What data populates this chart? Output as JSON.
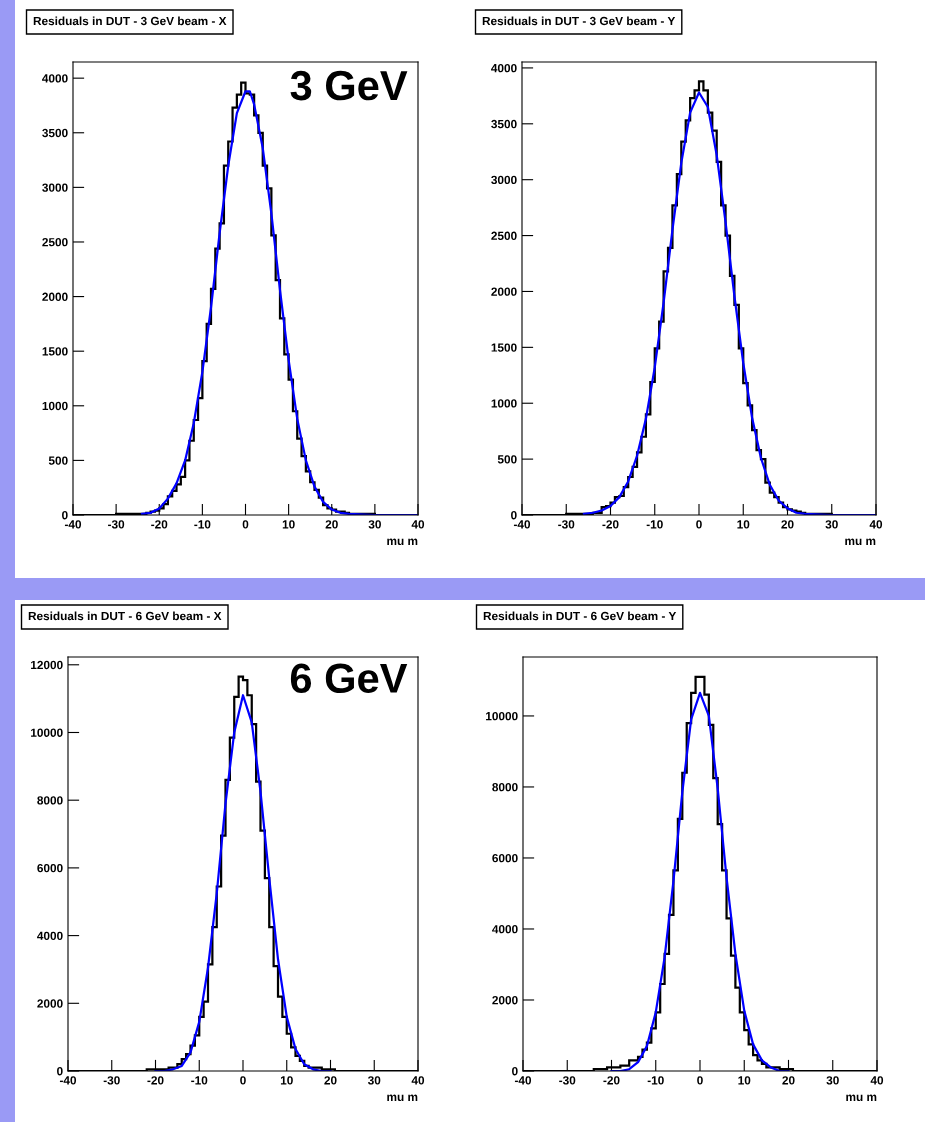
{
  "chart_data": [
    {
      "type": "histogram",
      "title": "Residuals in DUT - 3 GeV beam - X",
      "xlabel": "mu m",
      "annotations": [
        "3 GeV"
      ],
      "xlim": [
        -40,
        40
      ],
      "xticks": [
        -40,
        -30,
        -20,
        -10,
        0,
        10,
        20,
        30,
        40
      ],
      "ylim": [
        0,
        4148
      ],
      "yticks": [
        0,
        500,
        1000,
        1500,
        2000,
        2500,
        3000,
        3500,
        4000
      ],
      "series": [
        {
          "type": "histogram",
          "color": "#000000",
          "bins": [
            -40,
            -39,
            -38,
            -37,
            -36,
            -35,
            -34,
            -33,
            -32,
            -31,
            -30,
            -29,
            -28,
            -27,
            -26,
            -25,
            -24,
            -23,
            -22,
            -21,
            -20,
            -19,
            -18,
            -17,
            -16,
            -15,
            -14,
            -13,
            -12,
            -11,
            -10,
            -9,
            -8,
            -7,
            -6,
            -5,
            -4,
            -3,
            -2,
            -1,
            0,
            1,
            2,
            3,
            4,
            5,
            6,
            7,
            8,
            9,
            10,
            11,
            12,
            13,
            14,
            15,
            16,
            17,
            18,
            19,
            20,
            21,
            22,
            23,
            24,
            25,
            26,
            27,
            28,
            29,
            30,
            31,
            32,
            33,
            34,
            35,
            36,
            37,
            38,
            39,
            40
          ],
          "values": [
            0,
            0,
            0,
            0,
            0,
            0,
            0,
            0,
            0,
            0,
            10,
            10,
            10,
            10,
            10,
            10,
            10,
            20,
            30,
            40,
            60,
            100,
            170,
            220,
            280,
            350,
            500,
            680,
            870,
            1070,
            1410,
            1750,
            2070,
            2440,
            2670,
            3200,
            3420,
            3730,
            3850,
            3960,
            3860,
            3850,
            3660,
            3500,
            3200,
            2990,
            2560,
            2150,
            1800,
            1470,
            1240,
            950,
            700,
            540,
            400,
            300,
            230,
            160,
            90,
            60,
            50,
            30,
            30,
            20,
            10,
            10,
            10,
            10,
            10,
            10,
            0,
            0,
            0,
            0,
            0,
            0,
            0,
            0,
            0,
            0
          ]
        },
        {
          "type": "line",
          "color": "#0000ff",
          "x": [
            -24,
            -22,
            -20,
            -18,
            -16,
            -14,
            -12,
            -10,
            -8,
            -6,
            -4,
            -2,
            0,
            1,
            2,
            4,
            6,
            8,
            10,
            12,
            14,
            16,
            18,
            20,
            22,
            24,
            30,
            40
          ],
          "values": [
            10,
            20,
            60,
            150,
            290,
            500,
            840,
            1310,
            1900,
            2580,
            3200,
            3680,
            3880,
            3880,
            3760,
            3360,
            2760,
            2060,
            1420,
            880,
            500,
            260,
            120,
            50,
            20,
            10,
            0,
            0
          ]
        }
      ]
    },
    {
      "type": "histogram",
      "title": "Residuals in DUT - 3 GeV beam - Y",
      "xlabel": "mu m",
      "xlim": [
        -40,
        40
      ],
      "xticks": [
        -40,
        -30,
        -20,
        -10,
        0,
        10,
        20,
        30,
        40
      ],
      "ylim": [
        0,
        4053
      ],
      "yticks": [
        0,
        500,
        1000,
        1500,
        2000,
        2500,
        3000,
        3500,
        4000
      ],
      "series": [
        {
          "type": "histogram",
          "color": "#000000",
          "bins": [
            -40,
            -39,
            -38,
            -37,
            -36,
            -35,
            -34,
            -33,
            -32,
            -31,
            -30,
            -29,
            -28,
            -27,
            -26,
            -25,
            -24,
            -23,
            -22,
            -21,
            -20,
            -19,
            -18,
            -17,
            -16,
            -15,
            -14,
            -13,
            -12,
            -11,
            -10,
            -9,
            -8,
            -7,
            -6,
            -5,
            -4,
            -3,
            -2,
            -1,
            0,
            1,
            2,
            3,
            4,
            5,
            6,
            7,
            8,
            9,
            10,
            11,
            12,
            13,
            14,
            15,
            16,
            17,
            18,
            19,
            20,
            21,
            22,
            23,
            24,
            25,
            26,
            27,
            28,
            29,
            30,
            31,
            32,
            33,
            34,
            35,
            36,
            37,
            38,
            39,
            40
          ],
          "values": [
            0,
            0,
            0,
            0,
            0,
            0,
            0,
            0,
            0,
            0,
            10,
            10,
            10,
            10,
            10,
            10,
            20,
            20,
            70,
            80,
            110,
            160,
            170,
            250,
            340,
            430,
            560,
            700,
            900,
            1190,
            1490,
            1730,
            2180,
            2390,
            2770,
            3050,
            3340,
            3530,
            3730,
            3800,
            3880,
            3800,
            3600,
            3440,
            3160,
            2770,
            2500,
            2140,
            1880,
            1490,
            1180,
            980,
            760,
            580,
            500,
            290,
            200,
            160,
            110,
            70,
            50,
            40,
            30,
            20,
            10,
            10,
            10,
            10,
            10,
            10,
            0,
            0,
            0,
            0,
            0,
            0,
            0,
            0,
            0,
            0
          ]
        },
        {
          "type": "line",
          "color": "#0000ff",
          "x": [
            -26,
            -24,
            -22,
            -20,
            -18,
            -16,
            -14,
            -12,
            -10,
            -8,
            -6,
            -4,
            -2,
            0,
            2,
            4,
            6,
            8,
            10,
            12,
            14,
            16,
            18,
            20,
            22,
            24,
            30,
            40
          ],
          "values": [
            10,
            20,
            40,
            80,
            160,
            300,
            530,
            860,
            1320,
            1900,
            2550,
            3150,
            3600,
            3780,
            3650,
            3220,
            2620,
            1960,
            1360,
            870,
            510,
            270,
            130,
            60,
            20,
            10,
            0,
            0
          ]
        }
      ]
    },
    {
      "type": "histogram",
      "title": "Residuals in DUT - 6 GeV beam - X",
      "xlabel": "mu m",
      "annotations": [
        "6 GeV"
      ],
      "xlim": [
        -40,
        40
      ],
      "xticks": [
        -40,
        -30,
        -20,
        -10,
        0,
        10,
        20,
        30,
        40
      ],
      "ylim": [
        0,
        12230
      ],
      "yticks": [
        0,
        2000,
        4000,
        6000,
        8000,
        10000,
        12000
      ],
      "series": [
        {
          "type": "histogram",
          "color": "#000000",
          "bins": [
            -40,
            -39,
            -38,
            -37,
            -36,
            -35,
            -34,
            -33,
            -32,
            -31,
            -30,
            -29,
            -28,
            -27,
            -26,
            -25,
            -24,
            -23,
            -22,
            -21,
            -20,
            -19,
            -18,
            -17,
            -16,
            -15,
            -14,
            -13,
            -12,
            -11,
            -10,
            -9,
            -8,
            -7,
            -6,
            -5,
            -4,
            -3,
            -2,
            -1,
            0,
            1,
            2,
            3,
            4,
            5,
            6,
            7,
            8,
            9,
            10,
            11,
            12,
            13,
            14,
            15,
            16,
            17,
            18,
            19,
            20,
            21,
            22,
            23,
            24,
            25,
            26,
            27,
            28,
            29,
            30,
            31,
            32,
            33,
            34,
            35,
            36,
            37,
            38,
            39,
            40
          ],
          "values": [
            0,
            0,
            0,
            0,
            0,
            0,
            0,
            0,
            0,
            0,
            0,
            0,
            0,
            0,
            0,
            0,
            0,
            0,
            50,
            50,
            50,
            50,
            50,
            100,
            100,
            200,
            350,
            500,
            750,
            1050,
            1600,
            2050,
            3150,
            4250,
            5450,
            6950,
            8600,
            9850,
            11050,
            11650,
            11550,
            11100,
            10250,
            8550,
            7100,
            5700,
            4250,
            3100,
            2200,
            1600,
            1100,
            700,
            450,
            300,
            150,
            100,
            100,
            100,
            50,
            50,
            50,
            0,
            0,
            0,
            0,
            0,
            0,
            0,
            0,
            0,
            0,
            0,
            0,
            0,
            0,
            0,
            0,
            0,
            0,
            0
          ]
        },
        {
          "type": "line",
          "color": "#0000ff",
          "x": [
            -20,
            -18,
            -16,
            -14,
            -12,
            -10,
            -8,
            -6,
            -4,
            -2,
            0,
            2,
            4,
            6,
            8,
            10,
            12,
            14,
            16,
            18,
            20
          ],
          "values": [
            0,
            0,
            50,
            150,
            550,
            1450,
            3050,
            5250,
            7900,
            10000,
            11100,
            10300,
            8250,
            5700,
            3300,
            1600,
            650,
            200,
            50,
            0,
            0
          ]
        }
      ]
    },
    {
      "type": "histogram",
      "title": "Residuals in DUT - 6 GeV beam - Y",
      "xlabel": "mu m",
      "xlim": [
        -40,
        40
      ],
      "xticks": [
        -40,
        -30,
        -20,
        -10,
        0,
        10,
        20,
        30,
        40
      ],
      "ylim": [
        0,
        11660
      ],
      "yticks": [
        0,
        2000,
        4000,
        6000,
        8000,
        10000
      ],
      "series": [
        {
          "type": "histogram",
          "color": "#000000",
          "bins": [
            -40,
            -39,
            -38,
            -37,
            -36,
            -35,
            -34,
            -33,
            -32,
            -31,
            -30,
            -29,
            -28,
            -27,
            -26,
            -25,
            -24,
            -23,
            -22,
            -21,
            -20,
            -19,
            -18,
            -17,
            -16,
            -15,
            -14,
            -13,
            -12,
            -11,
            -10,
            -9,
            -8,
            -7,
            -6,
            -5,
            -4,
            -3,
            -2,
            -1,
            0,
            1,
            2,
            3,
            4,
            5,
            6,
            7,
            8,
            9,
            10,
            11,
            12,
            13,
            14,
            15,
            16,
            17,
            18,
            19,
            20,
            21,
            22,
            23,
            24,
            25,
            26,
            27,
            28,
            29,
            30,
            31,
            32,
            33,
            34,
            35,
            36,
            37,
            38,
            39,
            40
          ],
          "values": [
            0,
            0,
            0,
            0,
            0,
            0,
            0,
            0,
            0,
            0,
            0,
            0,
            0,
            0,
            0,
            0,
            50,
            50,
            50,
            100,
            100,
            100,
            150,
            150,
            300,
            300,
            400,
            600,
            800,
            1200,
            1650,
            2450,
            3300,
            4400,
            5650,
            7100,
            8400,
            9800,
            10650,
            11100,
            11100,
            10600,
            9750,
            8250,
            6950,
            5650,
            4300,
            3250,
            2350,
            1650,
            1150,
            750,
            450,
            300,
            200,
            100,
            100,
            100,
            50,
            50,
            50,
            0,
            0,
            0,
            0,
            0,
            0,
            0,
            0,
            0,
            0,
            0,
            0,
            0,
            0,
            0,
            0,
            0,
            0,
            0
          ]
        },
        {
          "type": "line",
          "color": "#0000ff",
          "x": [
            -20,
            -18,
            -16,
            -14,
            -12,
            -10,
            -8,
            -6,
            -4,
            -2,
            0,
            2,
            4,
            6,
            8,
            10,
            12,
            14,
            16,
            18,
            20
          ],
          "values": [
            0,
            0,
            50,
            250,
            700,
            1650,
            3200,
            5350,
            7850,
            9900,
            10650,
            10000,
            7950,
            5450,
            3300,
            1700,
            750,
            300,
            100,
            0,
            0
          ]
        }
      ]
    }
  ]
}
